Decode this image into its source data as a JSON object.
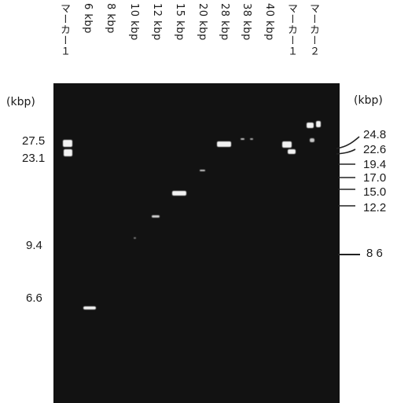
{
  "lanes": [
    {
      "id": "marker1-left",
      "label": "マーカー１"
    },
    {
      "id": "6kbp",
      "label": "6 kbp"
    },
    {
      "id": "8kbp",
      "label": "8 kbp"
    },
    {
      "id": "10kbp",
      "label": "10 kbp"
    },
    {
      "id": "12kbp",
      "label": "12 kbp"
    },
    {
      "id": "15kbp",
      "label": "15 kbp"
    },
    {
      "id": "20kbp",
      "label": "20 kbp"
    },
    {
      "id": "28kbp",
      "label": "28 kbp"
    },
    {
      "id": "38kbp",
      "label": "38 kbp"
    },
    {
      "id": "40kbp",
      "label": "40 kbp"
    },
    {
      "id": "marker1-right",
      "label": "マーカー１"
    },
    {
      "id": "marker2",
      "label": "マーカー２"
    }
  ],
  "left_axis": {
    "unit": "(kbp)",
    "values": [
      "27.5",
      "23.1",
      "9.4",
      "6.6"
    ]
  },
  "right_axis": {
    "unit": "(kbp)",
    "values": [
      "24.8",
      "22.6",
      "19.4",
      "17.0",
      "15.0",
      "12.2",
      "8 6"
    ]
  },
  "colors": {
    "gel": "#121212",
    "band": "#f2f2f2",
    "ink": "#1a1a1a"
  }
}
